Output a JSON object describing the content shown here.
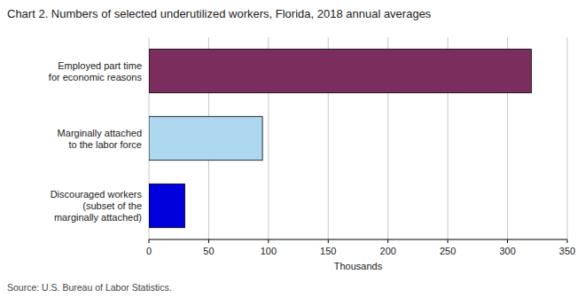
{
  "chart_data": {
    "type": "bar",
    "orientation": "horizontal",
    "title": "Chart 2. Numbers of selected underutilized workers, Florida, 2018 annual averages",
    "categories": [
      "Discouraged workers\n(subset of the\nmarginally attached)",
      "Marginally attached\nto the labor force",
      "Employed part time\nfor economic reasons"
    ],
    "values": [
      30,
      95,
      320
    ],
    "colors": [
      "#0000dd",
      "#add8f0",
      "#7b2d5e"
    ],
    "xlabel": "Thousands",
    "xlim": [
      0,
      350
    ],
    "xticks": [
      0,
      50,
      100,
      150,
      200,
      250,
      300,
      350
    ],
    "grid": true,
    "source": "Source: U.S. Bureau of Labor Statistics."
  }
}
